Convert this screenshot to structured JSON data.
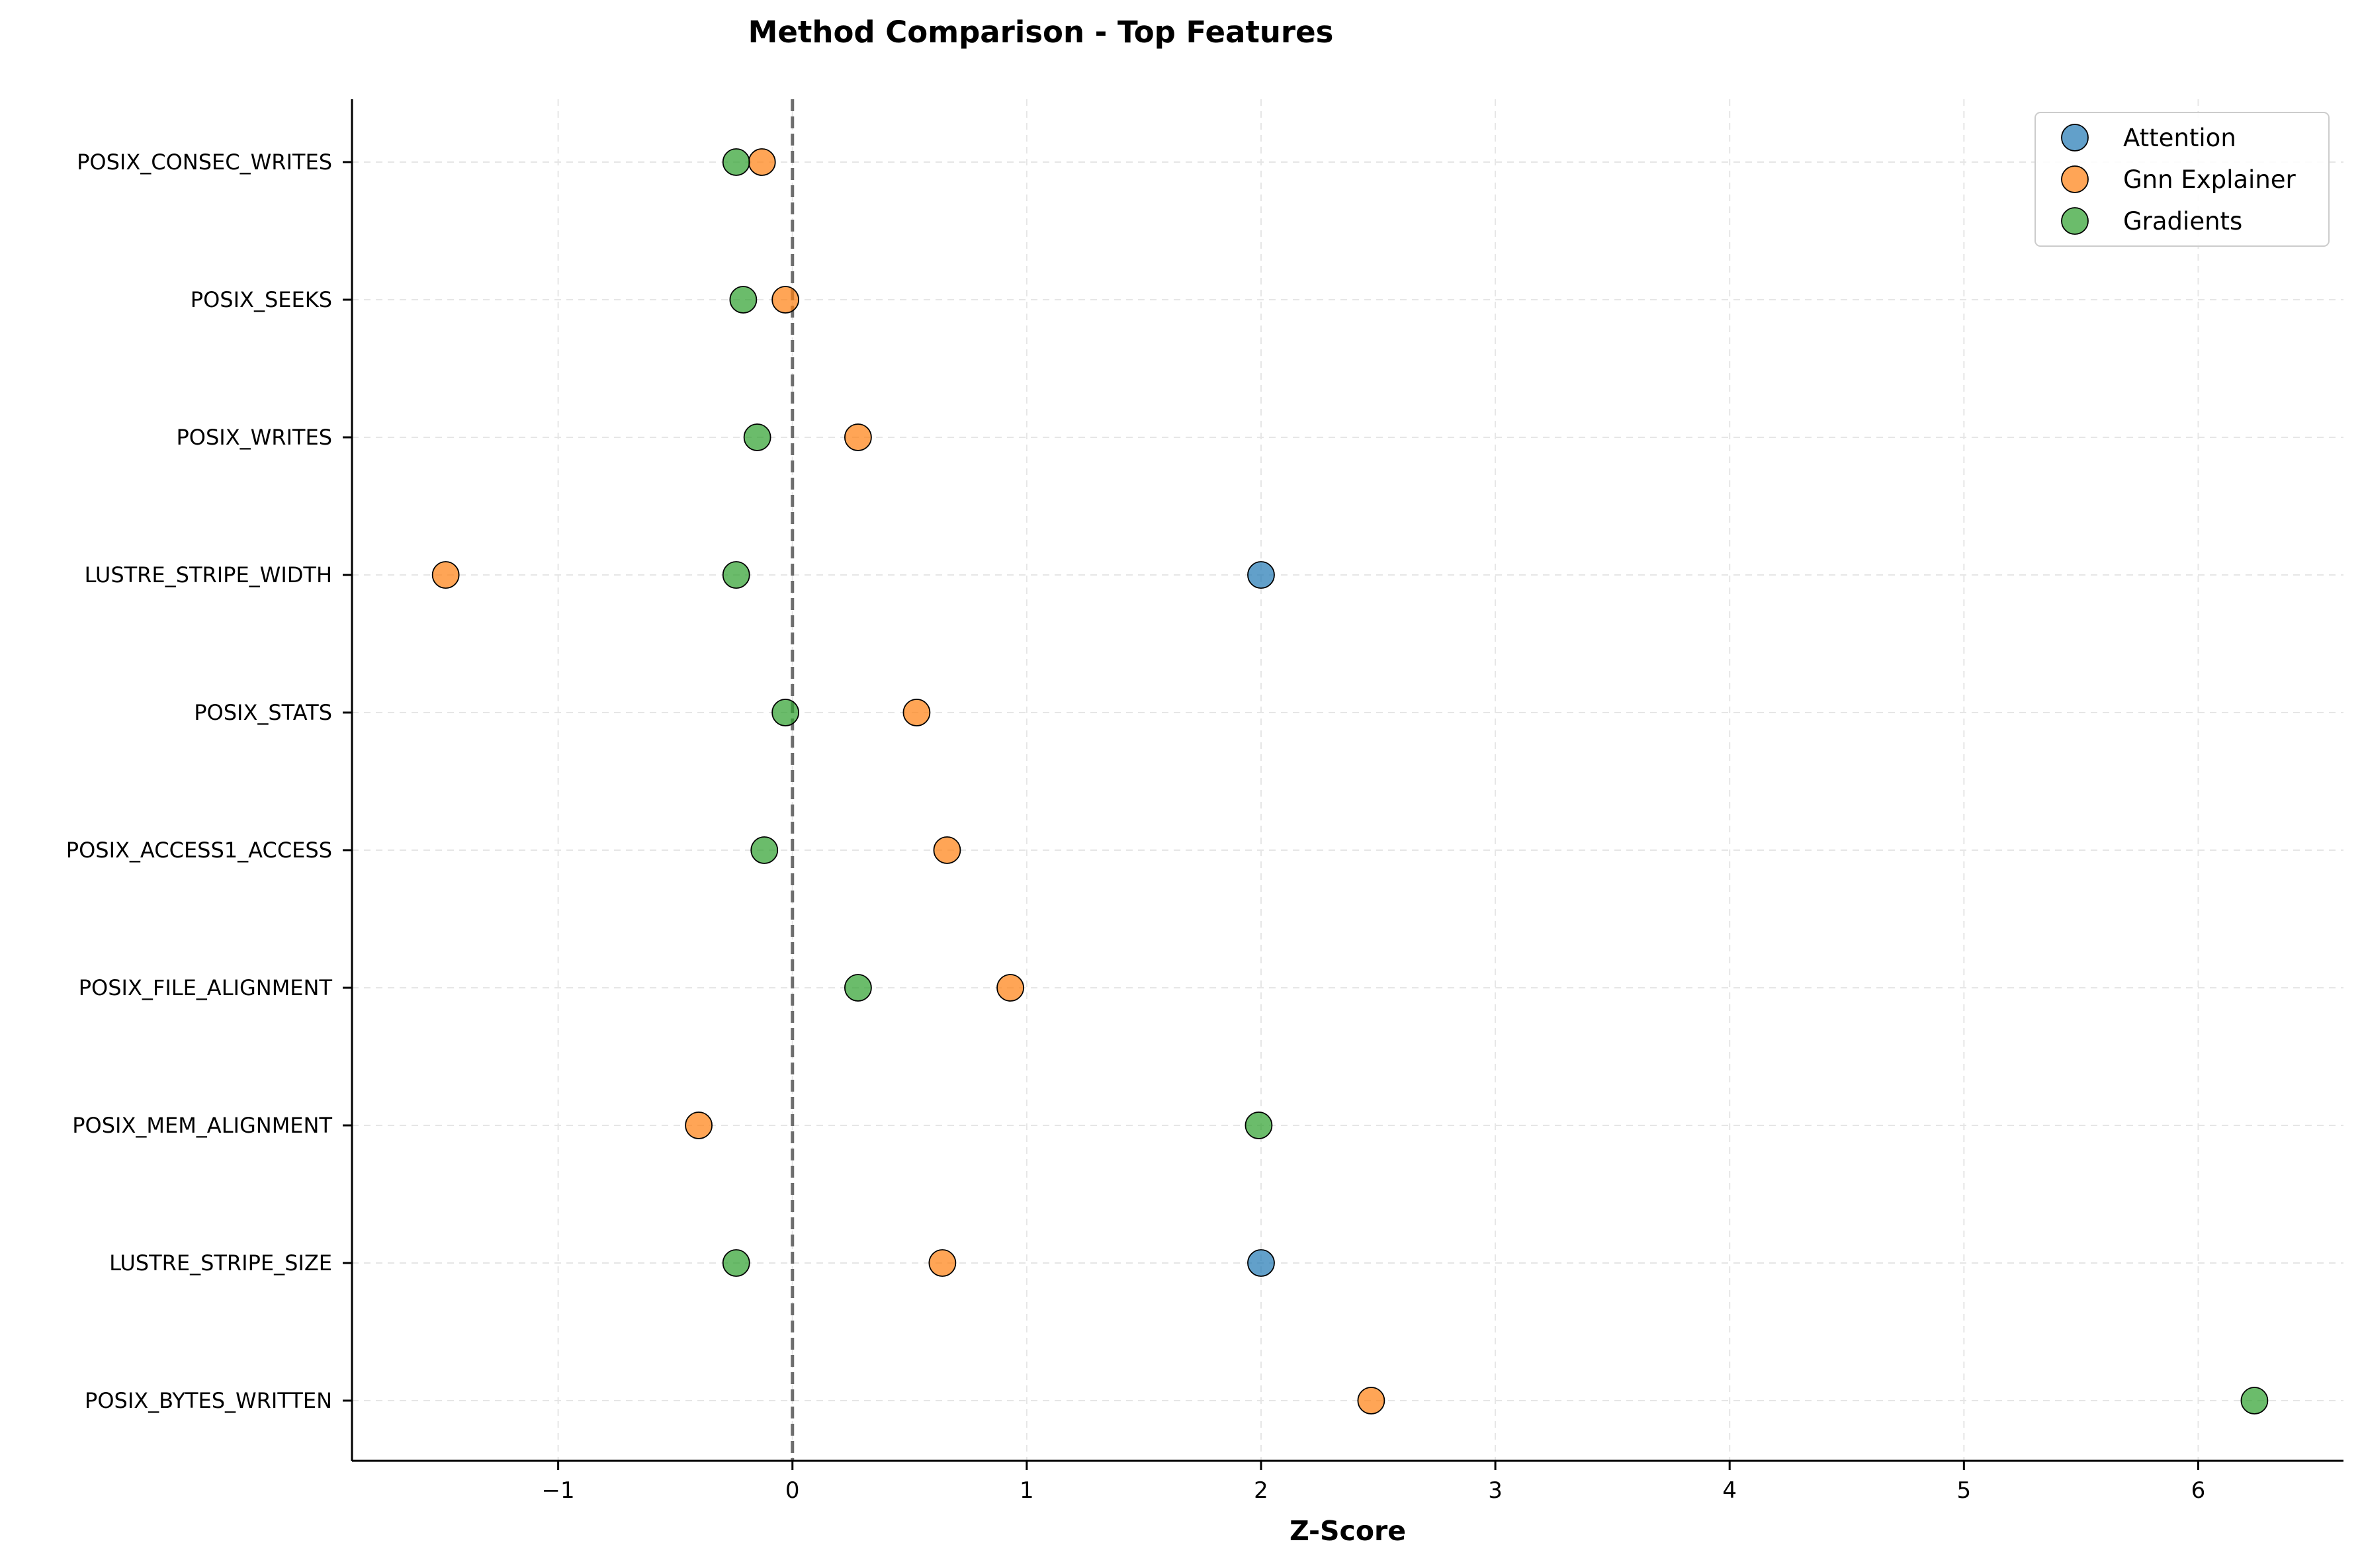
{
  "chart_data": {
    "type": "scatter",
    "title": "Method Comparison - Top Features",
    "xlabel": "Z-Score",
    "ylabel": "",
    "xlim": [
      -1.88,
      6.62
    ],
    "xticks": [
      -1,
      0,
      1,
      2,
      3,
      4,
      5,
      6
    ],
    "xtick_labels": [
      "−1",
      "0",
      "1",
      "2",
      "3",
      "4",
      "5",
      "6"
    ],
    "categories": [
      "POSIX_CONSEC_WRITES",
      "POSIX_SEEKS",
      "POSIX_WRITES",
      "LUSTRE_STRIPE_WIDTH",
      "POSIX_STATS",
      "POSIX_ACCESS1_ACCESS",
      "POSIX_FILE_ALIGNMENT",
      "POSIX_MEM_ALIGNMENT",
      "LUSTRE_STRIPE_SIZE",
      "POSIX_BYTES_WRITTEN"
    ],
    "grid": true,
    "legend_position": "top-right",
    "reference_line": {
      "x": 0,
      "style": "dashed"
    },
    "series": [
      {
        "name": "Attention",
        "color": "#1f77b4",
        "points": [
          {
            "category": "LUSTRE_STRIPE_WIDTH",
            "x": 2.0
          },
          {
            "category": "LUSTRE_STRIPE_SIZE",
            "x": 2.0
          }
        ]
      },
      {
        "name": "Gnn Explainer",
        "color": "#ff7f0e",
        "points": [
          {
            "category": "POSIX_CONSEC_WRITES",
            "x": -0.13
          },
          {
            "category": "POSIX_SEEKS",
            "x": -0.03
          },
          {
            "category": "POSIX_WRITES",
            "x": 0.28
          },
          {
            "category": "LUSTRE_STRIPE_WIDTH",
            "x": -1.48
          },
          {
            "category": "POSIX_STATS",
            "x": 0.53
          },
          {
            "category": "POSIX_ACCESS1_ACCESS",
            "x": 0.66
          },
          {
            "category": "POSIX_FILE_ALIGNMENT",
            "x": 0.93
          },
          {
            "category": "POSIX_MEM_ALIGNMENT",
            "x": -0.4
          },
          {
            "category": "LUSTRE_STRIPE_SIZE",
            "x": 0.64
          },
          {
            "category": "POSIX_BYTES_WRITTEN",
            "x": 2.47
          }
        ]
      },
      {
        "name": "Gradients",
        "color": "#2ca02c",
        "points": [
          {
            "category": "POSIX_CONSEC_WRITES",
            "x": -0.24
          },
          {
            "category": "POSIX_SEEKS",
            "x": -0.21
          },
          {
            "category": "POSIX_WRITES",
            "x": -0.15
          },
          {
            "category": "LUSTRE_STRIPE_WIDTH",
            "x": -0.24
          },
          {
            "category": "POSIX_STATS",
            "x": -0.03
          },
          {
            "category": "POSIX_ACCESS1_ACCESS",
            "x": -0.12
          },
          {
            "category": "POSIX_FILE_ALIGNMENT",
            "x": 0.28
          },
          {
            "category": "POSIX_MEM_ALIGNMENT",
            "x": 1.99
          },
          {
            "category": "LUSTRE_STRIPE_SIZE",
            "x": -0.24
          },
          {
            "category": "POSIX_BYTES_WRITTEN",
            "x": 6.24
          }
        ]
      }
    ]
  }
}
